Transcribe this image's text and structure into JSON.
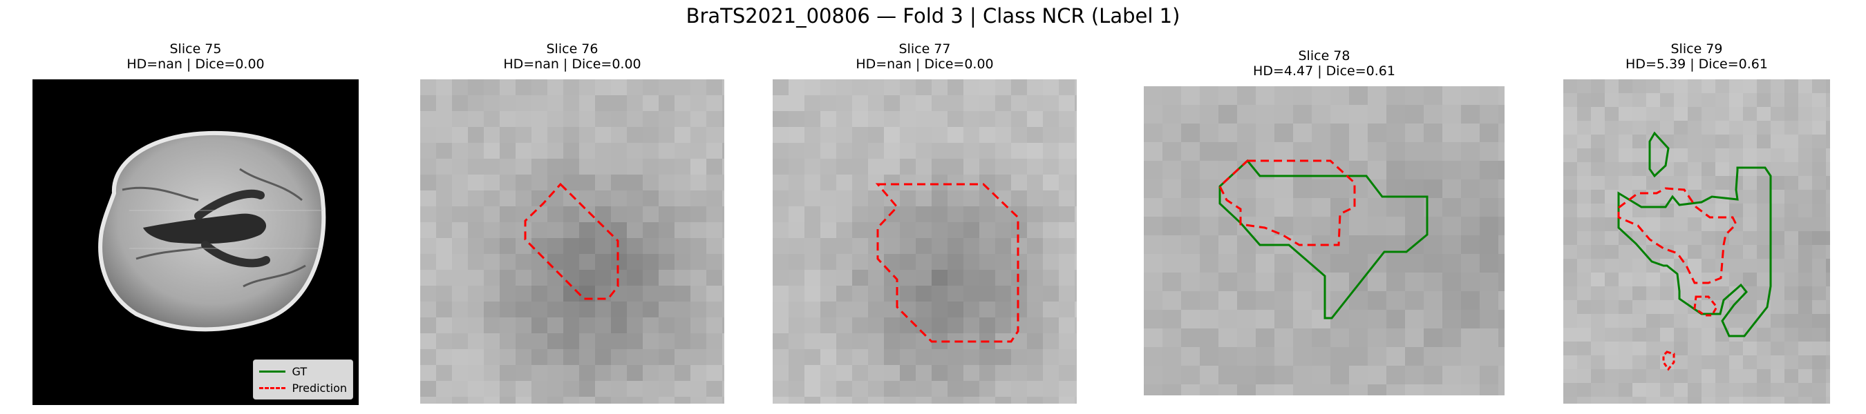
{
  "title": "BraTS2021_00806 — Fold 3 | Class NCR (Label 1)",
  "colors": {
    "gt": "#008000",
    "prediction": "#ff0000",
    "background_mask": "#000000"
  },
  "legend": {
    "gt_label": "GT",
    "pred_label": "Prediction",
    "placement": "lower right"
  },
  "chart_data": [
    {
      "type": "image",
      "slice": 75,
      "title_line1": "Slice 75",
      "title_line2": "HD=nan | Dice=0.00",
      "view": "full axial brain slice",
      "gt_contour": false,
      "pred_contour": false,
      "legend": true
    },
    {
      "type": "image",
      "slice": 76,
      "title_line1": "Slice 76",
      "title_line2": "HD=nan | Dice=0.00",
      "view": "zoomed crop",
      "gt_contour": false,
      "pred_contour": true
    },
    {
      "type": "image",
      "slice": 77,
      "title_line1": "Slice 77",
      "title_line2": "HD=nan | Dice=0.00",
      "view": "zoomed crop",
      "gt_contour": false,
      "pred_contour": true
    },
    {
      "type": "image",
      "slice": 78,
      "title_line1": "Slice 78",
      "title_line2": "HD=4.47 | Dice=0.61",
      "view": "zoomed crop",
      "gt_contour": true,
      "pred_contour": true
    },
    {
      "type": "image",
      "slice": 79,
      "title_line1": "Slice 79",
      "title_line2": "HD=5.39 | Dice=0.61",
      "view": "zoomed crop",
      "gt_contour": true,
      "pred_contour": true
    }
  ]
}
